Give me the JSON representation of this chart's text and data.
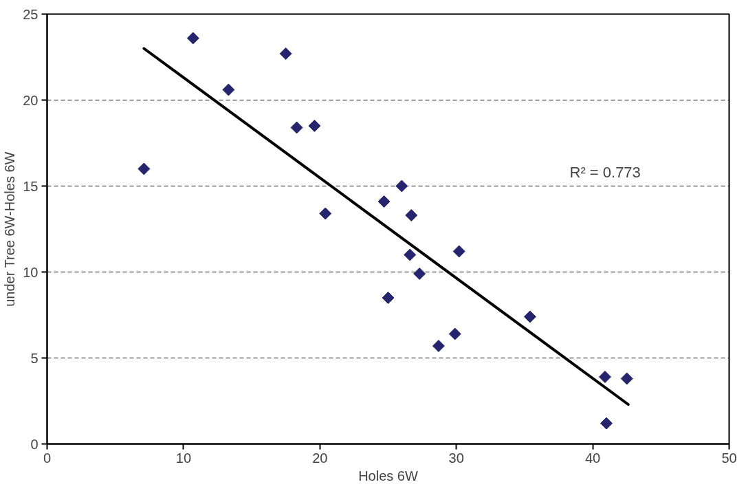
{
  "chart_data": {
    "type": "scatter",
    "xlabel": "Holes 6W",
    "ylabel": "under Tree 6W-Holes 6W",
    "xlim": [
      0,
      50
    ],
    "ylim": [
      0,
      25
    ],
    "xticks": [
      0,
      10,
      20,
      30,
      40,
      50
    ],
    "yticks": [
      0,
      5,
      10,
      15,
      20,
      25
    ],
    "grid": "y",
    "series": [
      {
        "marker": "diamond",
        "color": "#25256e",
        "x": [
          7.1,
          10.7,
          13.3,
          17.5,
          18.3,
          19.6,
          20.4,
          24.7,
          26.0,
          26.7,
          26.6,
          27.3,
          30.2,
          25.0,
          28.7,
          29.9,
          35.4,
          40.9,
          42.5,
          41.0
        ],
        "values": [
          16.0,
          23.6,
          20.6,
          22.7,
          18.4,
          18.5,
          13.4,
          14.1,
          15.0,
          13.3,
          11.0,
          9.9,
          11.2,
          8.5,
          5.7,
          6.4,
          7.4,
          3.9,
          3.8,
          1.2
        ]
      },
      {
        "type": "line",
        "color": "#000000",
        "x": [
          7.1,
          42.6
        ],
        "values": [
          23.0,
          2.3
        ]
      }
    ],
    "annotations": [
      "R² = 0.773"
    ]
  }
}
